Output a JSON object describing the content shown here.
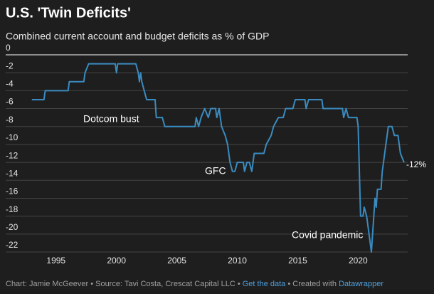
{
  "chart_data": {
    "type": "line",
    "title": "U.S. 'Twin Deficits'",
    "subtitle": "Combined current account and budget deficits as % of GDP",
    "x": [
      1993.0,
      1994.0,
      1994.1,
      1996.0,
      1996.1,
      1997.3,
      1997.4,
      1997.7,
      1999.9,
      2000.0,
      2000.1,
      2001.6,
      2001.8,
      2001.9,
      2002.0,
      2002.1,
      2002.3,
      2002.5,
      2003.2,
      2003.3,
      2003.8,
      2004.0,
      2006.5,
      2006.6,
      2006.8,
      2007.0,
      2007.3,
      2007.6,
      2007.8,
      2008.2,
      2008.3,
      2008.5,
      2008.7,
      2009.0,
      2009.2,
      2009.4,
      2009.6,
      2009.8,
      2010.0,
      2010.5,
      2010.6,
      2010.8,
      2011.0,
      2011.2,
      2011.4,
      2012.2,
      2012.4,
      2012.8,
      2013.0,
      2013.4,
      2013.8,
      2014.0,
      2014.6,
      2014.8,
      2015.6,
      2015.7,
      2015.9,
      2017.0,
      2017.1,
      2018.7,
      2018.8,
      2019.0,
      2019.2,
      2019.9,
      2020.0,
      2020.2,
      2020.4,
      2020.5,
      2020.7,
      2020.9,
      2021.1,
      2021.3,
      2021.4,
      2021.5,
      2021.6,
      2021.9,
      2022.0,
      2022.3,
      2022.5,
      2022.8,
      2023.0,
      2023.3,
      2023.5,
      2023.8
    ],
    "values": [
      -5,
      -5,
      -4,
      -4,
      -3,
      -3,
      -2,
      -1,
      -1,
      -2,
      -1,
      -1,
      -2,
      -3,
      -2,
      -3,
      -4,
      -5,
      -5,
      -7,
      -7,
      -8,
      -8,
      -7,
      -8,
      -7,
      -6,
      -7,
      -6,
      -6,
      -7,
      -6,
      -8,
      -9,
      -10,
      -12,
      -13,
      -13,
      -12,
      -12,
      -13,
      -12,
      -12,
      -13,
      -11,
      -11,
      -10,
      -9,
      -8,
      -7,
      -7,
      -6,
      -6,
      -5,
      -5,
      -6,
      -5,
      -5,
      -6,
      -6,
      -7,
      -6,
      -7,
      -7,
      -8,
      -18,
      -18,
      -17,
      -18,
      -20,
      -22,
      -18,
      -16,
      -17,
      -15,
      -15,
      -13,
      -10,
      -8,
      -8,
      -9,
      -9,
      -11,
      -12
    ],
    "color": "#3a8bc0",
    "xlim": [
      1992.6,
      2024.1
    ],
    "ylim": [
      -22,
      0
    ],
    "xticks": [
      1995,
      2000,
      2005,
      2010,
      2015,
      2020
    ],
    "yticks": [
      0,
      -2,
      -4,
      -6,
      -8,
      -10,
      -12,
      -14,
      -16,
      -18,
      -20,
      -22
    ],
    "grid": true,
    "annotations": [
      "Dotcom bust",
      "GFC",
      "Covid pandemic",
      "-12%"
    ],
    "footer": {
      "credit": "Chart: Jamie McGeever • Source: Tavi Costa, Crescat Capital LLC • ",
      "data_link": "Get the data",
      "separator": " • Created with ",
      "tool_link": "Datawrapper"
    }
  }
}
